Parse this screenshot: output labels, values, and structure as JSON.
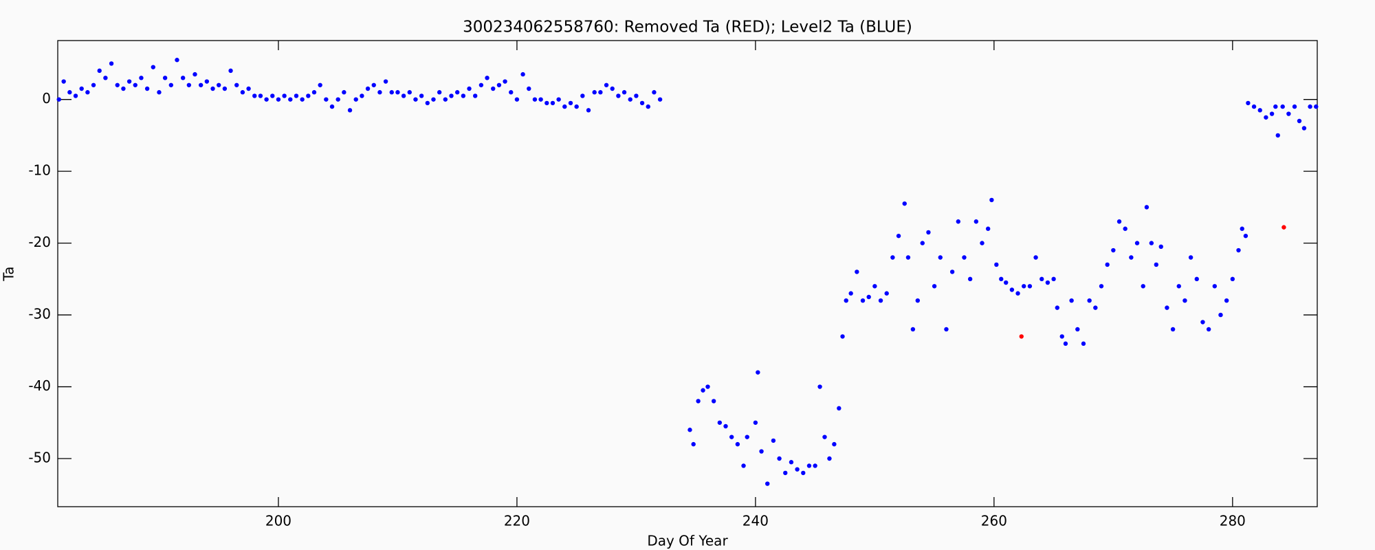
{
  "chart_data": {
    "type": "scatter",
    "title": "300234062558760: Removed Ta (RED); Level2 Ta (BLUE)",
    "xlabel": "Day Of Year",
    "ylabel": "Ta",
    "xlim": [
      181.5,
      287.1
    ],
    "ylim": [
      -56.7,
      8.2
    ],
    "xticks": [
      200,
      220,
      240,
      260,
      280
    ],
    "yticks": [
      -50,
      -40,
      -30,
      -20,
      -10,
      0
    ],
    "grid": false,
    "series": [
      {
        "color": "#0000ff",
        "x": [
          181.6,
          182,
          182.5,
          183,
          183.5,
          184,
          184.5,
          185,
          185.5,
          186,
          186.5,
          187,
          187.5,
          188,
          188.5,
          189,
          189.5,
          190,
          190.5,
          191,
          191.5,
          192,
          192.5,
          193,
          193.5,
          194,
          194.5,
          195,
          195.5,
          196,
          196.5,
          197,
          197.5,
          198,
          198.5,
          199,
          199.5,
          200,
          200.5,
          201,
          201.5,
          202,
          202.5,
          203,
          203.5,
          204,
          204.5,
          205,
          205.5,
          206,
          206.5,
          207,
          207.5,
          208,
          208.5,
          209,
          209.5,
          210,
          210.5,
          211,
          211.5,
          212,
          212.5,
          213,
          213.5,
          214,
          214.5,
          215,
          215.5,
          216,
          216.5,
          217,
          217.5,
          218,
          218.5,
          219,
          219.5,
          220,
          220.5,
          221,
          221.5,
          222,
          222.5,
          223,
          223.5,
          224,
          224.5,
          225,
          225.5,
          226,
          226.5,
          227,
          227.5,
          228,
          228.5,
          229,
          229.5,
          230,
          230.5,
          231,
          231.5,
          232,
          234.5,
          234.8,
          235.2,
          235.6,
          236,
          236.5,
          237,
          237.5,
          238,
          238.5,
          239,
          239.3,
          240,
          240.2,
          240.5,
          241,
          241.5,
          242,
          242.5,
          243,
          243.5,
          244,
          244.5,
          245,
          245.4,
          245.8,
          246.2,
          246.6,
          247,
          247.3,
          247.6,
          248,
          248.5,
          249,
          249.5,
          250,
          250.5,
          251,
          251.5,
          252,
          252.5,
          252.8,
          253.2,
          253.6,
          254,
          254.5,
          255,
          255.5,
          256,
          256.5,
          257,
          257.5,
          258,
          258.5,
          259,
          259.5,
          259.8,
          260.2,
          260.6,
          261,
          261.5,
          262,
          262.5,
          263,
          263.5,
          264,
          264.5,
          265,
          265.3,
          265.7,
          266,
          266.5,
          267,
          267.5,
          268,
          268.5,
          269,
          269.5,
          270,
          270.5,
          271,
          271.5,
          272,
          272.5,
          272.8,
          273.2,
          273.6,
          274,
          274.5,
          275,
          275.5,
          276,
          276.5,
          277,
          277.5,
          278,
          278.5,
          279,
          279.5,
          280,
          280.5,
          280.8,
          281.1,
          281.3,
          281.8,
          282.3,
          282.8,
          283.3,
          283.6,
          283.8,
          284.2,
          284.7,
          285.2,
          285.6,
          286,
          286.5,
          287
        ],
        "values": [
          0,
          2.5,
          1,
          0.5,
          1.5,
          1,
          2,
          4,
          3,
          5,
          2,
          1.5,
          2.5,
          2,
          3,
          1.5,
          4.5,
          1,
          3,
          2,
          5.5,
          3,
          2,
          3.5,
          2,
          2.5,
          1.5,
          2,
          1.5,
          4,
          2,
          1,
          1.5,
          0.5,
          0.5,
          0,
          0.5,
          0,
          0.5,
          0,
          0.5,
          0,
          0.5,
          1,
          2,
          0,
          -1,
          0,
          1,
          -1.5,
          0,
          0.5,
          1.5,
          2,
          1,
          2.5,
          1,
          1,
          0.5,
          1,
          0,
          0.5,
          -0.5,
          0,
          1,
          0,
          0.5,
          1,
          0.5,
          1.5,
          0.5,
          2,
          3,
          1.5,
          2,
          2.5,
          1,
          0,
          3.5,
          1.5,
          0,
          0,
          -0.5,
          -0.5,
          0,
          -1,
          -0.5,
          -1,
          0.5,
          -1.5,
          1,
          1,
          2,
          1.5,
          0.5,
          1,
          0,
          0.5,
          -0.5,
          -1,
          1,
          0,
          -46,
          -48,
          -42,
          -40.5,
          -40,
          -42,
          -45,
          -45.5,
          -47,
          -48,
          -51,
          -47,
          -45,
          -38,
          -49,
          -53.5,
          -47.5,
          -50,
          -52,
          -50.5,
          -51.5,
          -52,
          -51,
          -51,
          -40,
          -47,
          -50,
          -48,
          -43,
          -33,
          -28,
          -27,
          -24,
          -28,
          -27.5,
          -26,
          -28,
          -27,
          -22,
          -19,
          -14.5,
          -22,
          -32,
          -28,
          -20,
          -18.5,
          -26,
          -22,
          -32,
          -24,
          -17,
          -22,
          -25,
          -17,
          -20,
          -18,
          -14,
          -23,
          -25,
          -25.5,
          -26.5,
          -27,
          -26,
          -26,
          -22,
          -25,
          -25.5,
          -25,
          -29,
          -33,
          -34,
          -28,
          -32,
          -34,
          -28,
          -29,
          -26,
          -23,
          -21,
          -17,
          -18,
          -22,
          -20,
          -26,
          -15,
          -20,
          -23,
          -20.5,
          -29,
          -32,
          -26,
          -28,
          -22,
          -25,
          -31,
          -32,
          -26,
          -30,
          -28,
          -25,
          -21,
          -18,
          -19,
          -0.5,
          -1,
          -1.5,
          -2.5,
          -2,
          -1,
          -5,
          -1,
          -2,
          -1,
          -3,
          -4,
          -1,
          -1
        ]
      },
      {
        "color": "#ff0000",
        "x": [
          262.3,
          284.3
        ],
        "values": [
          -33,
          -17.8
        ]
      }
    ]
  }
}
